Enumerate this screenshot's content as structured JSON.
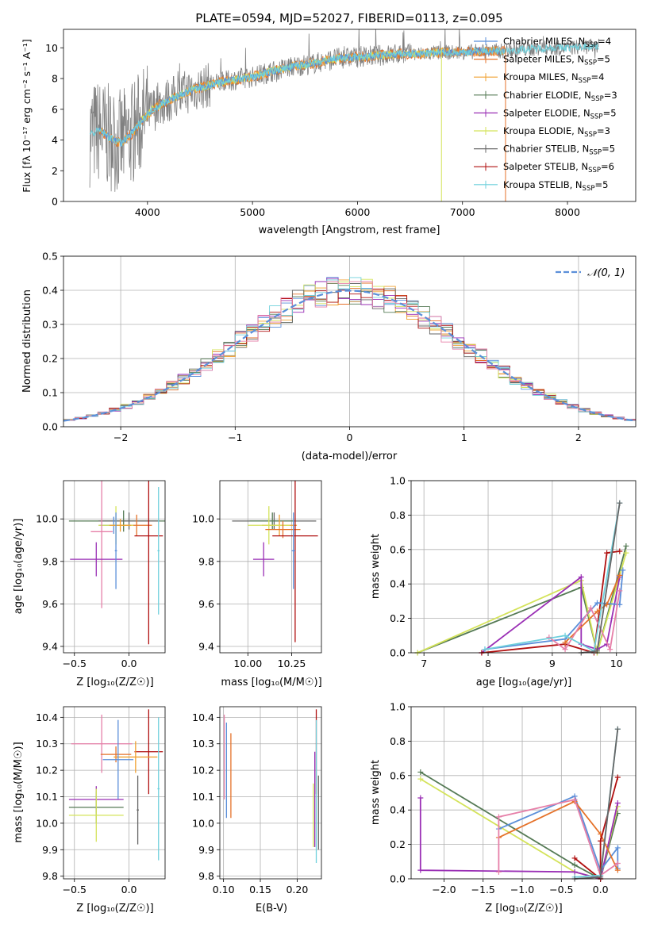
{
  "colors": {
    "chabrier_miles": "#5b8fd9",
    "salpeter_miles": "#e5722a",
    "kroupa_miles": "#f0a030",
    "chabrier_elodie": "#557a55",
    "salpeter_elodie": "#9a2fb5",
    "kroupa_elodie": "#d4e35a",
    "chabrier_stelib": "#666666",
    "salpeter_stelib": "#b01010",
    "kroupa_stelib": "#6fd0dc",
    "pink": "#e67fa8",
    "gauss": "#5b8fd9",
    "grey_spec": "#808080"
  },
  "chart_data": [
    {
      "id": "spectrum",
      "type": "line",
      "title": "PLATE=0594, MJD=52027, FIBERID=0113, z=0.095",
      "xlabel": "wavelength [Angstrom, rest frame]",
      "ylabel": "Flux [fλ 10⁻¹⁷ erg cm⁻² s⁻¹ A⁻¹]",
      "xlim": [
        3200,
        8650
      ],
      "ylim": [
        0,
        11.2
      ],
      "xticks": [
        4000,
        5000,
        6000,
        7000,
        8000
      ],
      "yticks": [
        0,
        2,
        4,
        6,
        8,
        10
      ],
      "legend_position": "right",
      "legend": [
        {
          "label": "Chabrier MILES, N",
          "sub": "SSP",
          "suffix": "=4",
          "color": "chabrier_miles"
        },
        {
          "label": "Salpeter MILES, N",
          "sub": "SSP",
          "suffix": "=5",
          "color": "salpeter_miles"
        },
        {
          "label": "Kroupa MILES, N",
          "sub": "SSP",
          "suffix": "=4",
          "color": "kroupa_miles"
        },
        {
          "label": "Chabrier ELODIE, N",
          "sub": "SSP",
          "suffix": "=3",
          "color": "chabrier_elodie"
        },
        {
          "label": "Salpeter ELODIE, N",
          "sub": "SSP",
          "suffix": "=5",
          "color": "salpeter_elodie"
        },
        {
          "label": "Kroupa ELODIE, N",
          "sub": "SSP",
          "suffix": "=3",
          "color": "kroupa_elodie"
        },
        {
          "label": "Chabrier STELIB, N",
          "sub": "SSP",
          "suffix": "=5",
          "color": "chabrier_stelib"
        },
        {
          "label": "Salpeter STELIB, N",
          "sub": "SSP",
          "suffix": "=6",
          "color": "salpeter_stelib"
        },
        {
          "label": "Kroupa STELIB, N",
          "sub": "SSP",
          "suffix": "=5",
          "color": "kroupa_stelib"
        }
      ],
      "continuum": {
        "x": [
          3450,
          3550,
          3650,
          3750,
          3850,
          3950,
          4050,
          4200,
          4400,
          4600,
          4800,
          5000,
          5200,
          5400,
          5600,
          5800,
          6000,
          6200,
          6400,
          6600,
          6800,
          7000,
          7200,
          7400,
          7600,
          7800,
          8000,
          8200,
          8300
        ],
        "y": [
          4.4,
          4.6,
          4.1,
          3.8,
          4.4,
          5.3,
          6.0,
          6.6,
          7.2,
          7.6,
          7.9,
          8.1,
          8.5,
          8.8,
          9.0,
          9.3,
          9.4,
          9.5,
          9.6,
          9.6,
          9.7,
          9.7,
          9.8,
          9.8,
          9.9,
          10.0,
          10.0,
          10.1,
          10.1
        ]
      }
    },
    {
      "id": "residuals",
      "type": "line",
      "xlabel": "(data-model)/error",
      "ylabel": "Normed distribution",
      "xlim": [
        -2.5,
        2.5
      ],
      "ylim": [
        0,
        0.5
      ],
      "xticks": [
        -2,
        -1,
        0,
        1,
        2
      ],
      "xtick_labels": [
        "−2",
        "−1",
        "0",
        "1",
        "2"
      ],
      "yticks": [
        0.0,
        0.1,
        0.2,
        0.3,
        0.4,
        0.5
      ],
      "ytick_labels": [
        "0.0",
        "0.1",
        "0.2",
        "0.3",
        "0.4",
        "0.5"
      ],
      "legend_label": "𝒩(0, 1)",
      "gaussian": {
        "mu": 0,
        "sigma": 1
      },
      "bin_width": 0.1
    },
    {
      "id": "age_vs_Z",
      "type": "scatter",
      "xlabel": "Z [log₁₀(Z/Z☉)]",
      "ylabel": "age  [log₁₀(age/yr)]",
      "xlim": [
        -0.6,
        0.33
      ],
      "ylim": [
        9.37,
        10.18
      ],
      "xticks": [
        -0.5,
        0.0
      ],
      "xtick_labels": [
        "−0.5",
        "0.0"
      ],
      "yticks": [
        9.4,
        9.6,
        9.8,
        10.0
      ],
      "ytick_labels": [
        "9.4",
        "9.6",
        "9.8",
        "10.0"
      ],
      "points": [
        {
          "x": -0.05,
          "y": 9.99,
          "xerr": 0.5,
          "yerr": 0.05,
          "color": "chabrier_elodie"
        },
        {
          "x": 0.0,
          "y": 9.99,
          "xerr": 0.28,
          "yerr": 0.04,
          "color": "chabrier_stelib"
        },
        {
          "x": -0.14,
          "y": 9.97,
          "xerr": 0.13,
          "yerr": 0.04,
          "color": "chabrier_miles"
        },
        {
          "x": 0.07,
          "y": 9.97,
          "xerr": 0.14,
          "yerr": 0.05,
          "color": "salpeter_miles"
        },
        {
          "x": -0.12,
          "y": 9.97,
          "xerr": 0.16,
          "yerr": 0.09,
          "color": "kroupa_elodie"
        },
        {
          "x": -0.08,
          "y": 9.97,
          "xerr": 0.1,
          "yerr": 0.03,
          "color": "kroupa_miles"
        },
        {
          "x": -0.25,
          "y": 9.94,
          "xerr": 0.1,
          "yerr": 0.36,
          "color": "pink"
        },
        {
          "x": 0.18,
          "y": 9.92,
          "xerr": 0.13,
          "yerr": 0.51,
          "color": "salpeter_stelib"
        },
        {
          "x": -0.3,
          "y": 9.81,
          "xerr": 0.24,
          "yerr": 0.08,
          "color": "salpeter_elodie"
        },
        {
          "x": -0.12,
          "y": 9.85,
          "xerr": 0.01,
          "yerr": 0.18,
          "color": "chabrier_miles"
        },
        {
          "x": 0.27,
          "y": 9.85,
          "xerr": 0.01,
          "yerr": 0.3,
          "color": "kroupa_stelib"
        }
      ]
    },
    {
      "id": "age_vs_mass",
      "type": "scatter",
      "xlabel": "mass [log₁₀(M/M☉)]",
      "xlim": [
        9.84,
        10.42
      ],
      "ylim": [
        9.37,
        10.18
      ],
      "xticks": [
        10.0,
        10.25
      ],
      "xtick_labels": [
        "10.00",
        "10.25"
      ],
      "yticks": [
        9.4,
        9.6,
        9.8,
        10.0
      ],
      "ytick_labels": [
        "9.4",
        "9.6",
        "9.8",
        "10.0"
      ],
      "points": [
        {
          "x": 10.15,
          "y": 9.99,
          "xerr": 0.24,
          "yerr": 0.04,
          "color": "chabrier_stelib"
        },
        {
          "x": 10.14,
          "y": 9.99,
          "xerr": 0.13,
          "yerr": 0.04,
          "color": "chabrier_elodie"
        },
        {
          "x": 10.18,
          "y": 9.97,
          "xerr": 0.1,
          "yerr": 0.05,
          "color": "kroupa_miles"
        },
        {
          "x": 10.12,
          "y": 9.97,
          "xerr": 0.12,
          "yerr": 0.09,
          "color": "kroupa_elodie"
        },
        {
          "x": 10.2,
          "y": 9.95,
          "xerr": 0.1,
          "yerr": 0.04,
          "color": "salpeter_miles"
        },
        {
          "x": 10.27,
          "y": 9.92,
          "xerr": 0.13,
          "yerr": 0.5,
          "color": "salpeter_stelib"
        },
        {
          "x": 10.09,
          "y": 9.81,
          "xerr": 0.06,
          "yerr": 0.08,
          "color": "salpeter_elodie"
        },
        {
          "x": 10.26,
          "y": 9.85,
          "xerr": 0.01,
          "yerr": 0.18,
          "color": "chabrier_miles"
        }
      ]
    },
    {
      "id": "mass_weight_vs_age",
      "type": "line",
      "xlabel": "age  [log₁₀(age/yr)]",
      "ylabel": "mass weight",
      "xlim": [
        6.8,
        10.3
      ],
      "ylim": [
        0,
        1
      ],
      "xticks": [
        7,
        8,
        9,
        10
      ],
      "yticks": [
        0,
        0.2,
        0.4,
        0.6,
        0.8,
        1.0
      ],
      "ytick_labels": [
        "0.0",
        "0.2",
        "0.4",
        "0.6",
        "0.8",
        "1.0"
      ],
      "series": [
        {
          "color": "chabrier_elodie",
          "x": [
            6.9,
            9.45,
            9.7,
            10.15
          ],
          "y": [
            0.0,
            0.38,
            0.0,
            0.62
          ]
        },
        {
          "color": "kroupa_elodie",
          "x": [
            6.9,
            9.45,
            9.7,
            10.15
          ],
          "y": [
            0.0,
            0.42,
            0.0,
            0.58
          ]
        },
        {
          "color": "salpeter_elodie",
          "x": [
            7.9,
            9.45,
            9.45,
            9.7,
            9.85,
            10.05
          ],
          "y": [
            0.0,
            0.44,
            0.05,
            0.02,
            0.05,
            0.44
          ]
        },
        {
          "color": "salpeter_stelib",
          "x": [
            7.9,
            9.2,
            9.65,
            9.85,
            10.05
          ],
          "y": [
            0.0,
            0.05,
            0.0,
            0.58,
            0.59
          ]
        },
        {
          "color": "chabrier_miles",
          "x": [
            7.95,
            9.2,
            9.7,
            10.05,
            10.1
          ],
          "y": [
            0.02,
            0.08,
            0.29,
            0.28,
            0.48
          ]
        },
        {
          "color": "salpeter_miles",
          "x": [
            9.2,
            9.7,
            9.85,
            10.05
          ],
          "y": [
            0.06,
            0.24,
            0.28,
            0.45
          ]
        },
        {
          "color": "pink",
          "x": [
            8.95,
            9.2,
            9.6,
            9.9,
            10.05
          ],
          "y": [
            0.09,
            0.02,
            0.26,
            0.02,
            0.36
          ]
        },
        {
          "color": "kroupa_stelib",
          "x": [
            7.95,
            9.2,
            9.65,
            10.05
          ],
          "y": [
            0.02,
            0.1,
            0.01,
            0.87
          ]
        },
        {
          "color": "chabrier_stelib",
          "x": [
            9.45,
            9.7,
            10.05
          ],
          "y": [
            0.0,
            0.01,
            0.87
          ]
        }
      ]
    },
    {
      "id": "mass_vs_Z",
      "type": "scatter",
      "xlabel": "Z [log₁₀(Z/Z☉)]",
      "ylabel": "mass [log₁₀(M/M☉)]",
      "xlim": [
        -0.6,
        0.33
      ],
      "ylim": [
        9.79,
        10.44
      ],
      "xticks": [
        -0.5,
        0.0
      ],
      "xtick_labels": [
        "−0.5",
        "0.0"
      ],
      "yticks": [
        9.8,
        9.9,
        10.0,
        10.1,
        10.2,
        10.3,
        10.4
      ],
      "ytick_labels": [
        "9.8",
        "9.9",
        "10.0",
        "10.1",
        "10.2",
        "10.3",
        "10.4"
      ],
      "points": [
        {
          "x": -0.25,
          "y": 10.3,
          "xerr": 0.28,
          "yerr": 0.11,
          "color": "pink"
        },
        {
          "x": 0.18,
          "y": 10.27,
          "xerr": 0.13,
          "yerr": 0.16,
          "color": "salpeter_stelib"
        },
        {
          "x": -0.12,
          "y": 10.26,
          "xerr": 0.14,
          "yerr": 0.03,
          "color": "salpeter_miles"
        },
        {
          "x": 0.06,
          "y": 10.25,
          "xerr": 0.2,
          "yerr": 0.06,
          "color": "kroupa_miles"
        },
        {
          "x": -0.1,
          "y": 10.24,
          "xerr": 0.14,
          "yerr": 0.15,
          "color": "chabrier_miles"
        },
        {
          "x": 0.27,
          "y": 10.13,
          "xerr": 0.01,
          "yerr": 0.27,
          "color": "kroupa_stelib"
        },
        {
          "x": -0.3,
          "y": 10.09,
          "xerr": 0.25,
          "yerr": 0.05,
          "color": "salpeter_elodie"
        },
        {
          "x": -0.3,
          "y": 10.06,
          "xerr": 0.25,
          "yerr": 0.06,
          "color": "chabrier_elodie"
        },
        {
          "x": -0.3,
          "y": 10.03,
          "xerr": 0.25,
          "yerr": 0.1,
          "color": "kroupa_elodie"
        },
        {
          "x": 0.08,
          "y": 10.05,
          "xerr": 0.01,
          "yerr": 0.13,
          "color": "chabrier_stelib"
        }
      ]
    },
    {
      "id": "mass_vs_ebv",
      "type": "scatter",
      "xlabel": "E(B-V)",
      "xlim": [
        0.095,
        0.233
      ],
      "ylim": [
        9.79,
        10.44
      ],
      "xticks": [
        0.1,
        0.15,
        0.2
      ],
      "xtick_labels": [
        "0.10",
        "0.15",
        "0.20"
      ],
      "yticks": [
        9.8,
        9.9,
        10.0,
        10.1,
        10.2,
        10.3,
        10.4
      ],
      "ytick_labels": [
        "9.8",
        "9.9",
        "10.0",
        "10.1",
        "10.2",
        "10.3",
        "10.4"
      ],
      "points": [
        {
          "x": 0.101,
          "y": 10.25,
          "yerr": 0.16,
          "color": "pink"
        },
        {
          "x": 0.104,
          "y": 10.2,
          "yerr": 0.18,
          "color": "chabrier_miles"
        },
        {
          "x": 0.11,
          "y": 10.18,
          "yerr": 0.16,
          "color": "salpeter_miles"
        },
        {
          "x": 0.222,
          "y": 10.03,
          "yerr": 0.12,
          "color": "kroupa_elodie"
        },
        {
          "x": 0.224,
          "y": 10.09,
          "yerr": 0.18,
          "color": "salpeter_elodie"
        },
        {
          "x": 0.226,
          "y": 10.27,
          "yerr": 0.16,
          "color": "salpeter_stelib"
        },
        {
          "x": 0.226,
          "y": 10.12,
          "yerr": 0.27,
          "color": "kroupa_stelib"
        },
        {
          "x": 0.229,
          "y": 10.04,
          "yerr": 0.14,
          "color": "chabrier_stelib"
        }
      ]
    },
    {
      "id": "mass_weight_vs_Z",
      "type": "line",
      "xlabel": "Z [log₁₀(Z/Z☉)]",
      "ylabel": "mass weight",
      "xlim": [
        -2.42,
        0.45
      ],
      "ylim": [
        0,
        1
      ],
      "xticks": [
        -2.0,
        -1.5,
        -1.0,
        -0.5,
        0.0
      ],
      "xtick_labels": [
        "−2.0",
        "−1.5",
        "−1.0",
        "−0.5",
        "0.0"
      ],
      "yticks": [
        0,
        0.2,
        0.4,
        0.6,
        0.8,
        1.0
      ],
      "ytick_labels": [
        "0.0",
        "0.2",
        "0.4",
        "0.6",
        "0.8",
        "1.0"
      ],
      "series": [
        {
          "color": "chabrier_elodie",
          "x": [
            -2.3,
            -0.33,
            0.0,
            0.22
          ],
          "y": [
            0.62,
            0.08,
            0.0,
            0.38
          ]
        },
        {
          "color": "kroupa_elodie",
          "x": [
            -2.3,
            -0.33,
            0.0,
            0.22
          ],
          "y": [
            0.58,
            0.04,
            0.0,
            0.42
          ]
        },
        {
          "color": "salpeter_elodie",
          "x": [
            -2.3,
            -2.3,
            -0.33,
            0.0,
            0.22
          ],
          "y": [
            0.47,
            0.05,
            0.04,
            0.0,
            0.44
          ]
        },
        {
          "color": "chabrier_miles",
          "x": [
            -1.3,
            -0.33,
            0.0,
            0.22,
            0.22
          ],
          "y": [
            0.29,
            0.48,
            0.05,
            0.18,
            0.06
          ]
        },
        {
          "color": "salpeter_miles",
          "x": [
            -1.3,
            -0.33,
            0.0,
            0.22
          ],
          "y": [
            0.24,
            0.45,
            0.26,
            0.05
          ]
        },
        {
          "color": "pink",
          "x": [
            -1.3,
            -1.3,
            -0.33,
            0.0,
            0.22
          ],
          "y": [
            0.04,
            0.36,
            0.46,
            0.02,
            0.09
          ]
        },
        {
          "color": "salpeter_stelib",
          "x": [
            -0.33,
            0.0,
            0.0,
            0.22
          ],
          "y": [
            0.12,
            0.0,
            0.22,
            0.59
          ]
        },
        {
          "color": "kroupa_stelib",
          "x": [
            -0.33,
            0.0,
            0.22
          ],
          "y": [
            0.01,
            0.02,
            0.87
          ]
        },
        {
          "color": "chabrier_stelib",
          "x": [
            -0.33,
            0.0,
            0.22
          ],
          "y": [
            0.0,
            0.01,
            0.87
          ]
        }
      ]
    }
  ]
}
